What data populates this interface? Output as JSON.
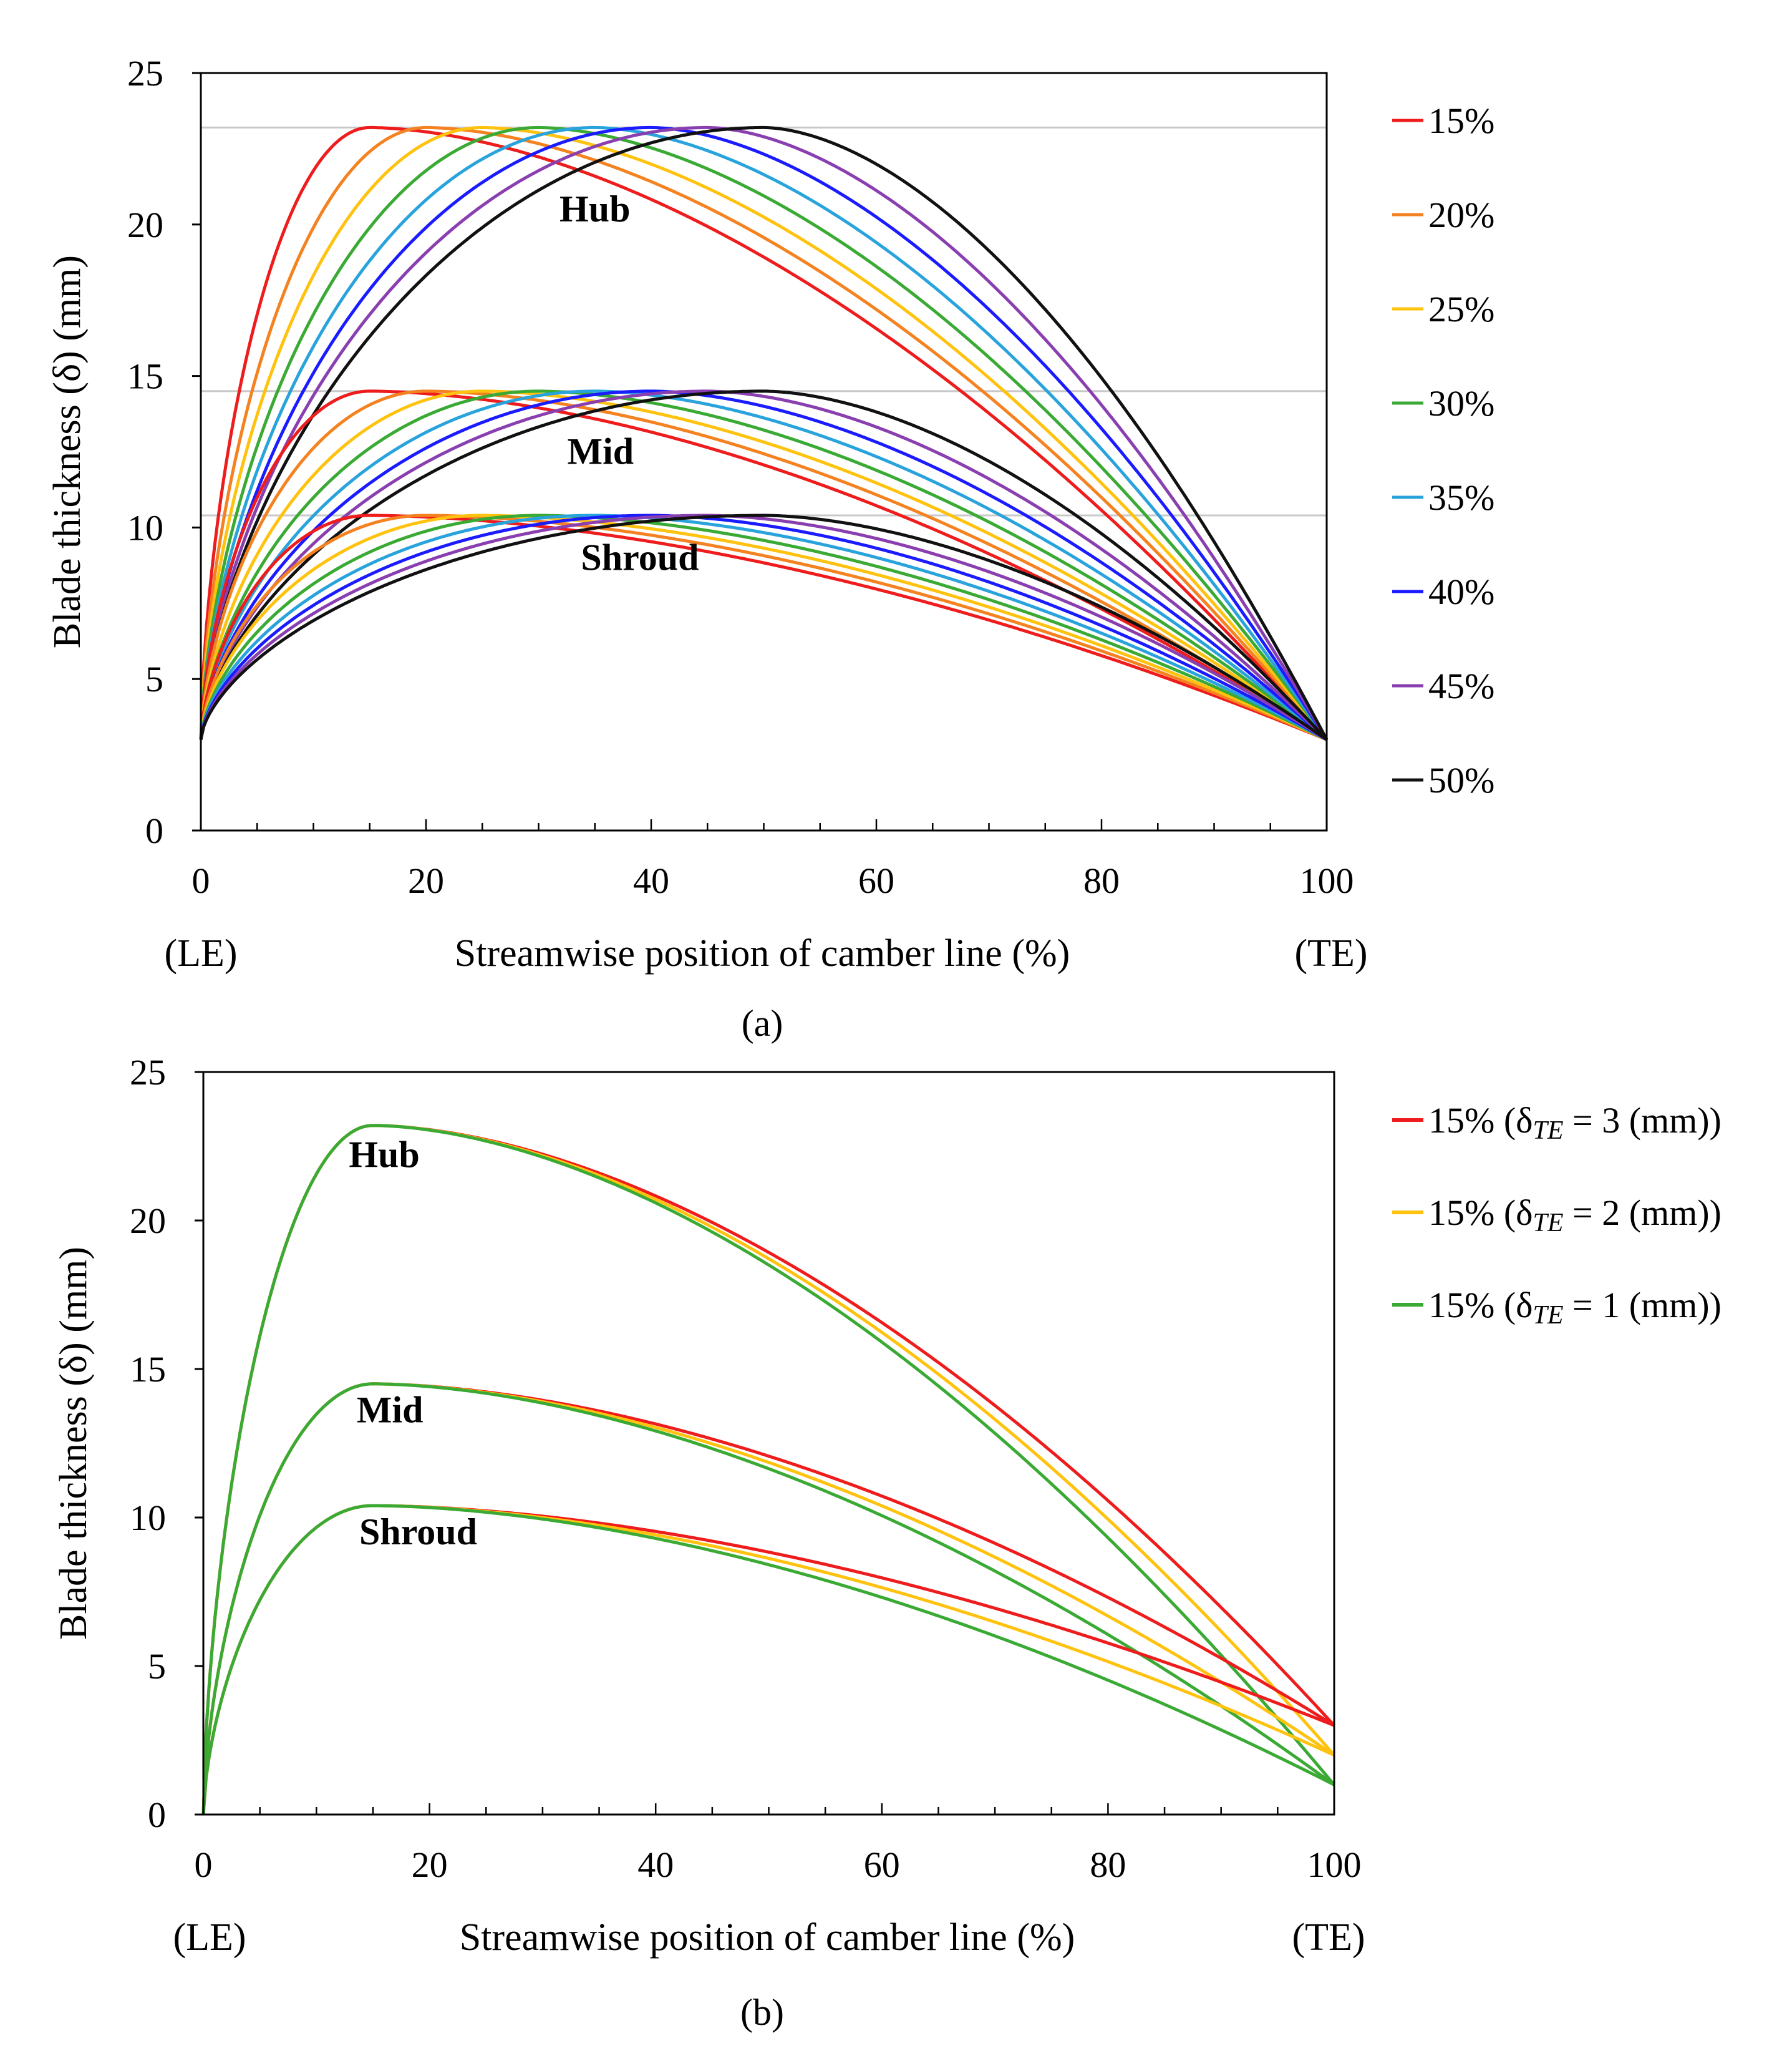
{
  "chart_data": [
    {
      "panel_label": "(a)",
      "type": "line",
      "xlabel": "Streamwise position of camber line (%)",
      "ylabel": "Blade thickness (δ) (mm)",
      "xlim": [
        0,
        100
      ],
      "ylim": [
        0,
        25
      ],
      "xticks": [
        "0",
        "20",
        "40",
        "60",
        "80",
        "100"
      ],
      "yticks": [
        "0",
        "5",
        "10",
        "15",
        "20",
        "25"
      ],
      "x_end_labels": {
        "left": "(LE)",
        "right": "(TE)"
      },
      "legend_position": "right",
      "reference_lines": [
        23.2,
        14.5,
        10.4
      ],
      "region_labels": [
        {
          "text": "Hub",
          "x": 35,
          "y": 20.1
        },
        {
          "text": "Mid",
          "x": 35.5,
          "y": 12.1
        },
        {
          "text": "Shroud",
          "x": 39,
          "y": 8.6
        }
      ],
      "series": [
        {
          "name": "15%",
          "color": "#ee1c1c",
          "max_position": 15,
          "te_thickness": 3
        },
        {
          "name": "20%",
          "color": "#f58220",
          "max_position": 20,
          "te_thickness": 3
        },
        {
          "name": "25%",
          "color": "#ffc20e",
          "max_position": 25,
          "te_thickness": 3
        },
        {
          "name": "30%",
          "color": "#3aaa35",
          "max_position": 30,
          "te_thickness": 3
        },
        {
          "name": "35%",
          "color": "#29a3dc",
          "max_position": 35,
          "te_thickness": 3
        },
        {
          "name": "40%",
          "color": "#1b1bff",
          "max_position": 40,
          "te_thickness": 3
        },
        {
          "name": "45%",
          "color": "#8a3fb0",
          "max_position": 45,
          "te_thickness": 3
        },
        {
          "name": "50%",
          "color": "#111111",
          "max_position": 50,
          "te_thickness": 3
        }
      ],
      "profiles": [
        {
          "name": "Hub",
          "max_thickness": 23.2
        },
        {
          "name": "Mid",
          "max_thickness": 14.5
        },
        {
          "name": "Shroud",
          "max_thickness": 10.4
        }
      ],
      "le_thickness": 3
    },
    {
      "panel_label": "(b)",
      "type": "line",
      "xlabel": "Streamwise position of camber line (%)",
      "ylabel": "Blade thickness (δ) (mm)",
      "xlim": [
        0,
        100
      ],
      "ylim": [
        0,
        25
      ],
      "xticks": [
        "0",
        "20",
        "40",
        "60",
        "80",
        "100"
      ],
      "yticks": [
        "0",
        "5",
        "10",
        "15",
        "20",
        "25"
      ],
      "x_end_labels": {
        "left": "(LE)",
        "right": "(TE)"
      },
      "legend_position": "right",
      "region_labels": [
        {
          "text": "Hub",
          "x": 16,
          "y": 21.8
        },
        {
          "text": "Mid",
          "x": 16.5,
          "y": 13.2
        },
        {
          "text": "Shroud",
          "x": 19,
          "y": 9.1
        }
      ],
      "series": [
        {
          "name": "15% (δTE = 3 (mm))",
          "legend_prefix": "15% (δ",
          "legend_sub": "TE",
          "legend_suffix": " = 3 (mm))",
          "color": "#ee1c1c",
          "max_position": 15,
          "te_thickness": 3
        },
        {
          "name": "15% (δTE = 2 (mm))",
          "legend_prefix": "15% (δ",
          "legend_sub": "TE",
          "legend_suffix": " = 2 (mm))",
          "color": "#ffc20e",
          "max_position": 15,
          "te_thickness": 2
        },
        {
          "name": "15% (δTE = 1 (mm))",
          "legend_prefix": "15% (δ",
          "legend_sub": "TE",
          "legend_suffix": " = 1 (mm))",
          "color": "#3aaa35",
          "max_position": 15,
          "te_thickness": 1
        }
      ],
      "profiles": [
        {
          "name": "Hub",
          "max_thickness": 23.2
        },
        {
          "name": "Mid",
          "max_thickness": 14.5
        },
        {
          "name": "Shroud",
          "max_thickness": 10.4
        }
      ],
      "le_thickness": 0
    }
  ]
}
